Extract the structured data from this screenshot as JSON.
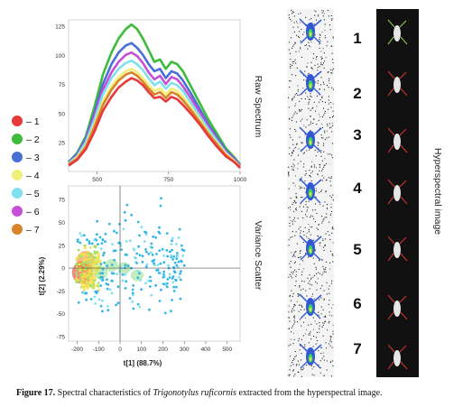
{
  "legend": [
    {
      "label": "– 1",
      "color": "#e8393a"
    },
    {
      "label": "– 2",
      "color": "#3dbb3a"
    },
    {
      "label": "– 3",
      "color": "#4a6fd4"
    },
    {
      "label": "– 4",
      "color": "#f0ef7a"
    },
    {
      "label": "– 5",
      "color": "#7fe0ee"
    },
    {
      "label": "– 6",
      "color": "#c74ed6"
    },
    {
      "label": "– 7",
      "color": "#d8832a"
    }
  ],
  "labels": {
    "raw_spectrum": "Raw Spectrum",
    "variance_scatter": "Variance Scatter",
    "hyperspectral": "Hyperspectral image"
  },
  "samples": [
    "1",
    "2",
    "3",
    "4",
    "5",
    "6",
    "7"
  ],
  "caption": {
    "prefix": "Figure 17.",
    "text_before": " Spectral characteristics of ",
    "species": "Trigonotylus ruficornis",
    "text_after": " extracted from the hyperspectral image."
  },
  "chart_data": [
    {
      "type": "line",
      "xticks": [
        "500",
        "750",
        "1000"
      ],
      "yticks": [
        "25",
        "50",
        "75",
        "100",
        "125"
      ],
      "xlim": [
        400,
        1000
      ],
      "ylim": [
        0,
        130
      ],
      "x": [
        400,
        430,
        460,
        490,
        520,
        550,
        575,
        600,
        620,
        640,
        660,
        680,
        700,
        720,
        740,
        760,
        780,
        800,
        830,
        860,
        890,
        920,
        950,
        980,
        1000
      ],
      "series": [
        {
          "color": "#3dbb3a",
          "values": [
            8,
            16,
            30,
            55,
            83,
            102,
            114,
            122,
            126,
            122,
            114,
            104,
            94,
            96,
            88,
            94,
            92,
            86,
            72,
            58,
            44,
            32,
            20,
            12,
            6
          ]
        },
        {
          "color": "#4a6fd4",
          "values": [
            8,
            15,
            28,
            50,
            75,
            92,
            102,
            108,
            110,
            106,
            100,
            92,
            86,
            88,
            80,
            86,
            84,
            78,
            66,
            53,
            40,
            29,
            18,
            11,
            5
          ]
        },
        {
          "color": "#c74ed6",
          "values": [
            7,
            14,
            26,
            47,
            70,
            85,
            94,
            100,
            102,
            99,
            93,
            85,
            79,
            82,
            75,
            81,
            79,
            73,
            62,
            50,
            38,
            27,
            17,
            10,
            5
          ]
        },
        {
          "color": "#7fe0ee",
          "values": [
            7,
            13,
            25,
            44,
            66,
            80,
            88,
            93,
            95,
            92,
            87,
            80,
            74,
            77,
            71,
            76,
            74,
            69,
            58,
            47,
            36,
            26,
            16,
            9,
            4
          ]
        },
        {
          "color": "#f0ef7a",
          "values": [
            6,
            12,
            22,
            40,
            60,
            73,
            81,
            86,
            88,
            85,
            80,
            74,
            69,
            71,
            66,
            71,
            69,
            64,
            54,
            44,
            33,
            24,
            15,
            9,
            4
          ]
        },
        {
          "color": "#d8832a",
          "values": [
            6,
            11,
            21,
            38,
            57,
            70,
            78,
            83,
            85,
            82,
            77,
            71,
            66,
            68,
            63,
            68,
            66,
            61,
            52,
            42,
            32,
            23,
            14,
            8,
            4
          ]
        },
        {
          "color": "#e8393a",
          "values": [
            5,
            10,
            19,
            34,
            52,
            64,
            72,
            77,
            80,
            78,
            74,
            68,
            63,
            64,
            60,
            64,
            62,
            57,
            49,
            40,
            30,
            21,
            13,
            8,
            3
          ]
        }
      ]
    },
    {
      "type": "scatter",
      "xlabel": "t[1] (88.7%)",
      "ylabel": "t[2] (2.29%)",
      "xlim": [
        -240,
        560
      ],
      "ylim": [
        -80,
        90
      ],
      "xticks": [
        "-200",
        "-100",
        "0",
        "100",
        "200",
        "300",
        "400",
        "500"
      ],
      "yticks": [
        "-75",
        "-50",
        "-25",
        "0",
        "25",
        "50",
        "75"
      ],
      "density": [
        {
          "x": -175,
          "y": -5,
          "level": 0.95
        },
        {
          "x": -160,
          "y": 8,
          "level": 0.75
        },
        {
          "x": -150,
          "y": -12,
          "level": 0.6
        },
        {
          "x": -120,
          "y": 5,
          "level": 0.45
        },
        {
          "x": -90,
          "y": -5,
          "level": 0.3
        },
        {
          "x": -40,
          "y": 3,
          "level": 0.25
        },
        {
          "x": 20,
          "y": 0,
          "level": 0.2
        },
        {
          "x": 80,
          "y": -8,
          "level": 0.18
        }
      ]
    }
  ]
}
